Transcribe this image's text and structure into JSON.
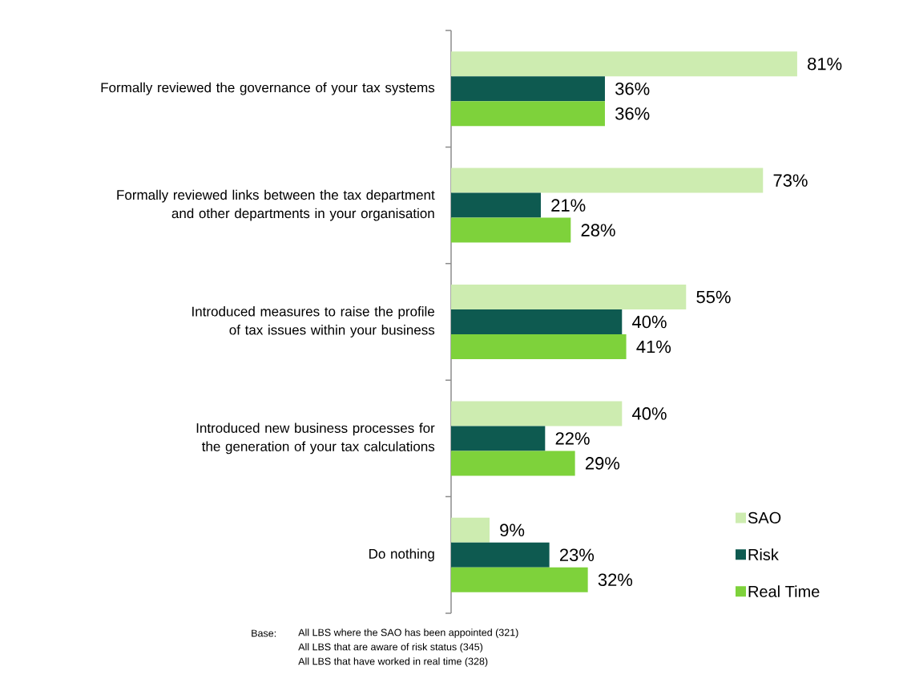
{
  "chart_data": {
    "type": "bar",
    "orientation": "horizontal",
    "data_labels": true,
    "legend": "bottom right",
    "grid": false,
    "categories": [
      "Formally reviewed the governance of your tax systems",
      "Formally reviewed links between the tax department and other departments in your organisation",
      "Introduced measures to raise the profile of tax issues within your business",
      "Introduced new business processes for the generation of your tax calculations",
      "Do nothing"
    ],
    "series": [
      {
        "name": "SAO",
        "color": "#cdecb0",
        "values": [
          81,
          73,
          55,
          40,
          9
        ],
        "value_labels": [
          "81%",
          "73%",
          "55%",
          "40%",
          "9%"
        ]
      },
      {
        "name": "Risk",
        "color": "#0e5a50",
        "values": [
          36,
          21,
          40,
          22,
          23
        ],
        "value_labels": [
          "36%",
          "21%",
          "40%",
          "22%",
          "23%"
        ]
      },
      {
        "name": "Real Time",
        "color": "#7ed23b",
        "values": [
          36,
          28,
          41,
          29,
          32
        ],
        "value_labels": [
          "36%",
          "28%",
          "41%",
          "29%",
          "32%"
        ]
      }
    ],
    "annotations": [
      "Base:",
      "All LBS where the SAO has been appointed (321)",
      "All LBS that are aware of risk status (345)",
      "All LBS that have worked in real time (328)"
    ]
  }
}
